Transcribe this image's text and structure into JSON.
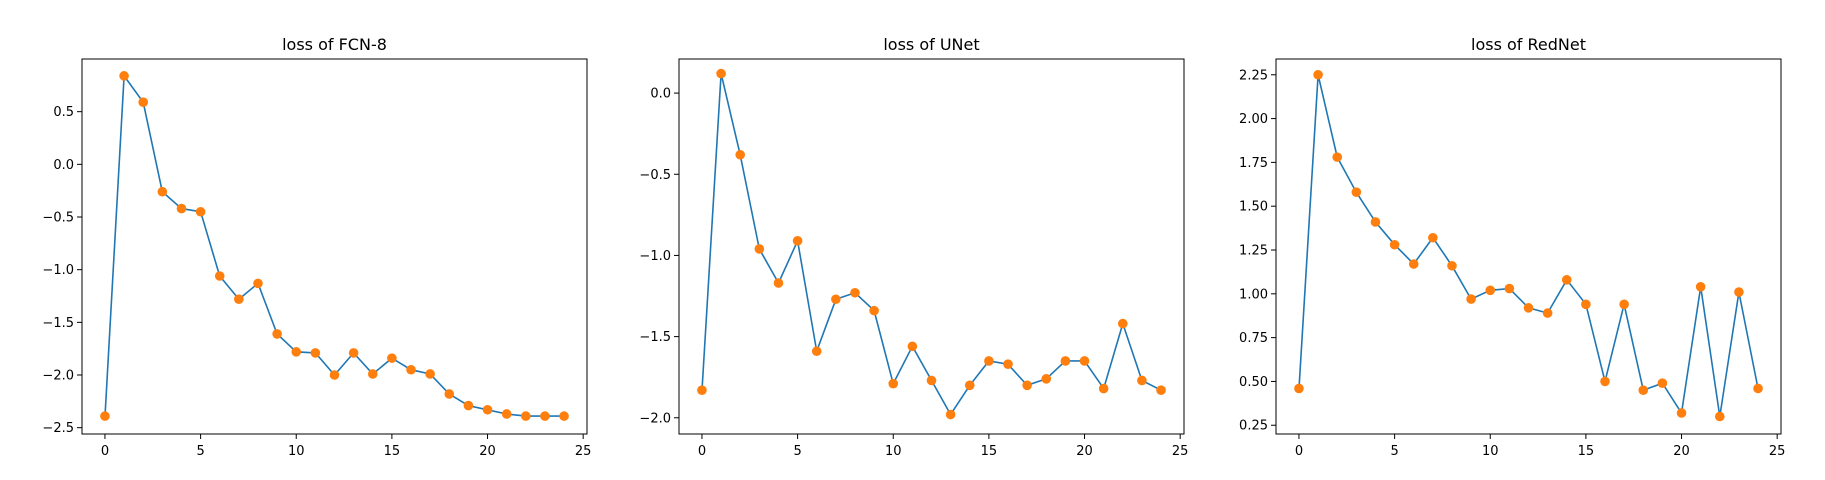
{
  "figure": {
    "line_color": "#1f77b4",
    "marker_color": "#ff7f0e",
    "background": "#ffffff"
  },
  "chart_data": [
    {
      "type": "line",
      "title": "loss of FCN-8",
      "xlabel": "",
      "ylabel": "",
      "xlim": [
        -1.2,
        25.2
      ],
      "ylim": [
        -2.56,
        1.0
      ],
      "xticks": [
        0,
        5,
        10,
        15,
        20,
        25
      ],
      "xtick_labels": [
        "0",
        "5",
        "10",
        "15",
        "20",
        "25"
      ],
      "yticks": [
        -2.5,
        -2.0,
        -1.5,
        -1.0,
        -0.5,
        0.0,
        0.5
      ],
      "ytick_labels": [
        "−2.5",
        "−2.0",
        "−1.5",
        "−1.0",
        "−0.5",
        "0.0",
        "0.5"
      ],
      "grid": false,
      "x": [
        0,
        1,
        2,
        3,
        4,
        5,
        6,
        7,
        8,
        9,
        10,
        11,
        12,
        13,
        14,
        15,
        16,
        17,
        18,
        19,
        20,
        21,
        22,
        23,
        24
      ],
      "y": [
        -2.39,
        0.84,
        0.59,
        -0.26,
        -0.42,
        -0.45,
        -1.06,
        -1.28,
        -1.13,
        -1.61,
        -1.78,
        -1.79,
        -2.0,
        -1.79,
        -1.99,
        -1.84,
        -1.95,
        -1.99,
        -2.18,
        -2.29,
        -2.33,
        -2.37,
        -2.39,
        -2.39,
        -2.39
      ]
    },
    {
      "type": "line",
      "title": "loss of UNet",
      "xlabel": "",
      "ylabel": "",
      "xlim": [
        -1.2,
        25.2
      ],
      "ylim": [
        -2.1,
        0.21
      ],
      "xticks": [
        0,
        5,
        10,
        15,
        20,
        25
      ],
      "xtick_labels": [
        "0",
        "5",
        "10",
        "15",
        "20",
        "25"
      ],
      "yticks": [
        -2.0,
        -1.5,
        -1.0,
        -0.5,
        0.0
      ],
      "ytick_labels": [
        "−2.0",
        "−1.5",
        "−1.0",
        "−0.5",
        "0.0"
      ],
      "grid": false,
      "x": [
        0,
        1,
        2,
        3,
        4,
        5,
        6,
        7,
        8,
        9,
        10,
        11,
        12,
        13,
        14,
        15,
        16,
        17,
        18,
        19,
        20,
        21,
        22,
        23,
        24
      ],
      "y": [
        -1.83,
        0.12,
        -0.38,
        -0.96,
        -1.17,
        -0.91,
        -1.59,
        -1.27,
        -1.23,
        -1.34,
        -1.79,
        -1.56,
        -1.77,
        -1.98,
        -1.8,
        -1.65,
        -1.67,
        -1.8,
        -1.76,
        -1.65,
        -1.65,
        -1.82,
        -1.42,
        -1.77,
        -1.83
      ]
    },
    {
      "type": "line",
      "title": "loss of RedNet",
      "xlabel": "",
      "ylabel": "",
      "xlim": [
        -1.2,
        25.2
      ],
      "ylim": [
        0.2,
        2.34
      ],
      "xticks": [
        0,
        5,
        10,
        15,
        20,
        25
      ],
      "xtick_labels": [
        "0",
        "5",
        "10",
        "15",
        "20",
        "25"
      ],
      "yticks": [
        0.25,
        0.5,
        0.75,
        1.0,
        1.25,
        1.5,
        1.75,
        2.0,
        2.25
      ],
      "ytick_labels": [
        "0.25",
        "0.50",
        "0.75",
        "1.00",
        "1.25",
        "1.50",
        "1.75",
        "2.00",
        "2.25"
      ],
      "grid": false,
      "x": [
        0,
        1,
        2,
        3,
        4,
        5,
        6,
        7,
        8,
        9,
        10,
        11,
        12,
        13,
        14,
        15,
        16,
        17,
        18,
        19,
        20,
        21,
        22,
        23,
        24
      ],
      "y": [
        0.46,
        2.25,
        1.78,
        1.58,
        1.41,
        1.28,
        1.17,
        1.32,
        1.16,
        0.97,
        1.02,
        1.03,
        0.92,
        0.89,
        1.08,
        0.94,
        0.5,
        0.94,
        0.45,
        0.49,
        0.32,
        1.04,
        0.3,
        1.01,
        0.46
      ]
    }
  ]
}
